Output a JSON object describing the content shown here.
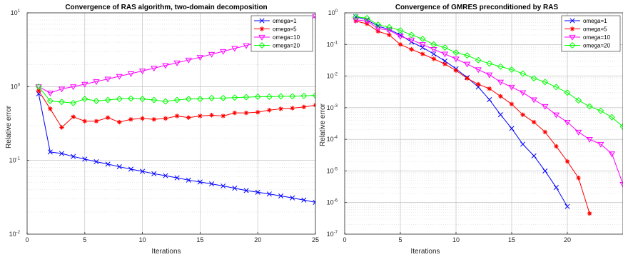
{
  "chart_data": [
    {
      "type": "line",
      "title": "Convergence of RAS algorithm, two-domain decomposition",
      "xlabel": "Iterations",
      "ylabel": "Relative error",
      "xlim": [
        0,
        25
      ],
      "ylim": [
        0.01,
        10
      ],
      "yscale": "log",
      "grid": true,
      "legend_position": "top-right",
      "x_ticks": [
        "0",
        "5",
        "10",
        "15",
        "20",
        "25"
      ],
      "y_ticks": [
        {
          "base": "10",
          "exp": "-2",
          "value": 0.01
        },
        {
          "base": "10",
          "exp": "-1",
          "value": 0.1
        },
        {
          "base": "10",
          "exp": "0",
          "value": 1
        },
        {
          "base": "10",
          "exp": "1",
          "value": 10
        }
      ],
      "series": [
        {
          "name": "omega=1",
          "color": "#0000ff",
          "marker": "x",
          "x": [
            1,
            2,
            3,
            4,
            5,
            6,
            7,
            8,
            9,
            10,
            11,
            12,
            13,
            14,
            15,
            16,
            17,
            18,
            19,
            20,
            21,
            22,
            23,
            24,
            25
          ],
          "y": [
            0.8,
            0.13,
            0.124,
            0.113,
            0.104,
            0.096,
            0.089,
            0.082,
            0.076,
            0.071,
            0.066,
            0.062,
            0.058,
            0.054,
            0.051,
            0.048,
            0.045,
            0.042,
            0.039,
            0.037,
            0.035,
            0.033,
            0.031,
            0.029,
            0.027
          ]
        },
        {
          "name": "omega=5",
          "color": "#ff0000",
          "marker": "*",
          "x": [
            1,
            2,
            3,
            4,
            5,
            6,
            7,
            8,
            9,
            10,
            11,
            12,
            13,
            14,
            15,
            16,
            17,
            18,
            19,
            20,
            21,
            22,
            23,
            24,
            25
          ],
          "y": [
            0.88,
            0.5,
            0.28,
            0.39,
            0.34,
            0.34,
            0.38,
            0.33,
            0.36,
            0.37,
            0.36,
            0.37,
            0.4,
            0.38,
            0.4,
            0.41,
            0.4,
            0.44,
            0.44,
            0.45,
            0.48,
            0.5,
            0.51,
            0.53,
            0.56
          ]
        },
        {
          "name": "omega=10",
          "color": "#ff00ff",
          "marker": "triangle-down",
          "x": [
            1,
            2,
            3,
            4,
            5,
            6,
            7,
            8,
            9,
            10,
            11,
            12,
            13,
            14,
            15,
            16,
            17,
            18,
            19,
            20,
            21,
            22,
            23,
            24,
            25
          ],
          "y": [
            1.0,
            0.82,
            0.93,
            1.0,
            1.08,
            1.17,
            1.27,
            1.38,
            1.5,
            1.63,
            1.78,
            1.94,
            2.1,
            2.3,
            2.5,
            2.75,
            3.0,
            3.3,
            3.6,
            4.0,
            4.6,
            5.2,
            6.0,
            7.0,
            9.0
          ]
        },
        {
          "name": "omega=20",
          "color": "#00ff00",
          "marker": "diamond",
          "x": [
            1,
            2,
            3,
            4,
            5,
            6,
            7,
            8,
            9,
            10,
            11,
            12,
            13,
            14,
            15,
            16,
            17,
            18,
            19,
            20,
            21,
            22,
            23,
            24,
            25
          ],
          "y": [
            1.0,
            0.64,
            0.62,
            0.6,
            0.68,
            0.64,
            0.66,
            0.68,
            0.69,
            0.68,
            0.66,
            0.63,
            0.66,
            0.68,
            0.68,
            0.7,
            0.7,
            0.71,
            0.72,
            0.73,
            0.73,
            0.74,
            0.74,
            0.75,
            0.76
          ]
        }
      ]
    },
    {
      "type": "line",
      "title": "Convergence of GMRES preconditioned by RAS",
      "xlabel": "Iterations",
      "ylabel": "Relative error",
      "xlim": [
        0,
        25
      ],
      "ylim": [
        1e-07,
        1
      ],
      "yscale": "log",
      "grid": true,
      "legend_position": "top-right",
      "x_ticks": [
        "0",
        "5",
        "10",
        "15",
        "20"
      ],
      "y_ticks": [
        {
          "base": "10",
          "exp": "-7",
          "value": 1e-07
        },
        {
          "base": "10",
          "exp": "-6",
          "value": 1e-06
        },
        {
          "base": "10",
          "exp": "-5",
          "value": 1e-05
        },
        {
          "base": "10",
          "exp": "-4",
          "value": 0.0001
        },
        {
          "base": "10",
          "exp": "-3",
          "value": 0.001
        },
        {
          "base": "10",
          "exp": "-2",
          "value": 0.01
        },
        {
          "base": "10",
          "exp": "-1",
          "value": 0.1
        },
        {
          "base": "10",
          "exp": "0",
          "value": 1
        }
      ],
      "series": [
        {
          "name": "omega=1",
          "color": "#0000ff",
          "marker": "x",
          "x": [
            1,
            2,
            3,
            4,
            5,
            6,
            7,
            8,
            9,
            10,
            11,
            12,
            13,
            14,
            15,
            16,
            17,
            18,
            19,
            20
          ],
          "y": [
            0.75,
            0.6,
            0.38,
            0.3,
            0.2,
            0.12,
            0.08,
            0.05,
            0.03,
            0.017,
            0.009,
            0.0045,
            0.0018,
            0.0006,
            0.00022,
            7e-05,
            3e-05,
            1e-05,
            3e-06,
            7.5e-07
          ]
        },
        {
          "name": "omega=5",
          "color": "#ff0000",
          "marker": "*",
          "x": [
            1,
            2,
            3,
            4,
            5,
            6,
            7,
            8,
            9,
            10,
            11,
            12,
            13,
            14,
            15,
            16,
            17,
            18,
            19,
            20,
            21,
            22
          ],
          "y": [
            0.55,
            0.45,
            0.26,
            0.2,
            0.1,
            0.07,
            0.05,
            0.035,
            0.024,
            0.015,
            0.0085,
            0.0055,
            0.004,
            0.0023,
            0.0013,
            0.0006,
            0.00035,
            0.00017,
            6e-05,
            2e-05,
            6e-06,
            4.5e-07
          ]
        },
        {
          "name": "omega=10",
          "color": "#ff00ff",
          "marker": "triangle-down",
          "x": [
            1,
            2,
            3,
            4,
            5,
            6,
            7,
            8,
            9,
            10,
            11,
            12,
            13,
            14,
            15,
            16,
            17,
            18,
            19,
            20,
            21,
            22,
            23,
            24,
            25
          ],
          "y": [
            0.6,
            0.55,
            0.32,
            0.28,
            0.18,
            0.14,
            0.1,
            0.07,
            0.05,
            0.035,
            0.024,
            0.016,
            0.011,
            0.0065,
            0.0045,
            0.003,
            0.0018,
            0.0011,
            0.0006,
            0.00035,
            0.00017,
            0.0001,
            7e-05,
            3.5e-05,
            3.8e-06
          ]
        },
        {
          "name": "omega=20",
          "color": "#00ff00",
          "marker": "diamond",
          "x": [
            1,
            2,
            3,
            4,
            5,
            6,
            7,
            8,
            9,
            10,
            11,
            12,
            13,
            14,
            15,
            16,
            17,
            18,
            19,
            20,
            21,
            22,
            23,
            24,
            25
          ],
          "y": [
            0.75,
            0.68,
            0.42,
            0.35,
            0.28,
            0.2,
            0.15,
            0.1,
            0.08,
            0.055,
            0.045,
            0.032,
            0.025,
            0.02,
            0.016,
            0.012,
            0.0085,
            0.0065,
            0.0045,
            0.003,
            0.0017,
            0.0011,
            0.0008,
            0.0005,
            0.00025
          ]
        }
      ]
    }
  ]
}
